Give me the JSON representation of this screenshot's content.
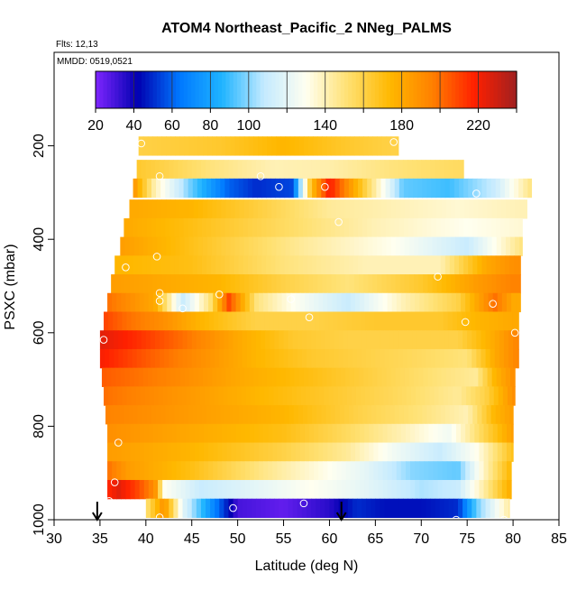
{
  "chart_data": {
    "type": "heatmap",
    "title": "ATOM4 Northeast_Pacific_2 NNeg_PALMS",
    "flights_note": "Flts: 12,13",
    "date_note": "MMDD: 0519,0521",
    "xlabel": "Latitude (deg N)",
    "ylabel": "PSXC (mbar)",
    "xlim": [
      30,
      85
    ],
    "ylim": [
      1000,
      0
    ],
    "x_ticks": [
      "30",
      "35",
      "40",
      "45",
      "50",
      "55",
      "60",
      "65",
      "70",
      "75",
      "80",
      "85"
    ],
    "y_ticks": [
      "200",
      "400",
      "600",
      "800",
      "1000"
    ],
    "colorbar": {
      "range": [
        20,
        240
      ],
      "tick_labels": [
        "20",
        "40",
        "60",
        "80",
        "100",
        "140",
        "180",
        "220"
      ],
      "colors": [
        "#7f26ff",
        "#0000b0",
        "#0078ff",
        "#1fb4ff",
        "#c4eaff",
        "#fffff0",
        "#ffe070",
        "#ffb800",
        "#ff8000",
        "#ff2000",
        "#a02020"
      ]
    },
    "arrows_latitude": [
      34.7,
      61.3
    ],
    "bands": [
      {
        "p": 200,
        "lat_min": 39.2,
        "lat_max": 67.5,
        "anchors": [
          [
            39,
            160
          ],
          [
            48,
            165
          ],
          [
            55,
            175
          ],
          [
            62,
            165
          ],
          [
            67,
            160
          ]
        ]
      },
      {
        "p": 250,
        "lat_min": 39.0,
        "lat_max": 74.6,
        "anchors": [
          [
            39,
            165
          ],
          [
            47,
            150
          ],
          [
            54,
            140
          ],
          [
            60,
            142
          ],
          [
            67,
            150
          ],
          [
            74,
            155
          ]
        ]
      },
      {
        "p": 290,
        "lat_min": 38.6,
        "lat_max": 82.0,
        "anchors": [
          [
            38.6,
            190
          ],
          [
            41,
            140
          ],
          [
            45,
            95
          ],
          [
            49,
            60
          ],
          [
            52,
            50
          ],
          [
            56,
            55
          ],
          [
            58,
            170
          ],
          [
            60,
            220
          ],
          [
            63,
            175
          ],
          [
            68,
            95
          ],
          [
            73,
            90
          ],
          [
            78,
            110
          ],
          [
            82,
            150
          ]
        ]
      },
      {
        "p": 335,
        "lat_min": 38.2,
        "lat_max": 81.5,
        "anchors": [
          [
            38,
            180
          ],
          [
            45,
            175
          ],
          [
            53,
            160
          ],
          [
            60,
            145
          ],
          [
            67,
            140
          ],
          [
            74,
            135
          ],
          [
            81,
            140
          ]
        ]
      },
      {
        "p": 375,
        "lat_min": 37.6,
        "lat_max": 81.0,
        "anchors": [
          [
            37.6,
            180
          ],
          [
            45,
            170
          ],
          [
            55,
            155
          ],
          [
            65,
            140
          ],
          [
            75,
            130
          ],
          [
            81,
            135
          ]
        ]
      },
      {
        "p": 415,
        "lat_min": 37.2,
        "lat_max": 81.0,
        "anchors": [
          [
            37,
            185
          ],
          [
            47,
            165
          ],
          [
            57,
            145
          ],
          [
            67,
            130
          ],
          [
            75,
            110
          ],
          [
            81,
            150
          ]
        ]
      },
      {
        "p": 455,
        "lat_min": 36.6,
        "lat_max": 80.8,
        "anchors": [
          [
            36.6,
            175
          ],
          [
            45,
            170
          ],
          [
            55,
            150
          ],
          [
            64,
            140
          ],
          [
            72,
            140
          ],
          [
            77,
            180
          ],
          [
            80,
            190
          ]
        ]
      },
      {
        "p": 495,
        "lat_min": 36.2,
        "lat_max": 80.8,
        "anchors": [
          [
            36,
            185
          ],
          [
            42,
            180
          ],
          [
            48,
            175
          ],
          [
            55,
            160
          ],
          [
            62,
            150
          ],
          [
            70,
            165
          ],
          [
            76,
            185
          ],
          [
            80,
            195
          ]
        ]
      },
      {
        "p": 535,
        "lat_min": 35.8,
        "lat_max": 80.8,
        "anchors": [
          [
            35.8,
            200
          ],
          [
            41,
            180
          ],
          [
            44,
            110
          ],
          [
            47,
            150
          ],
          [
            49,
            210
          ],
          [
            52,
            150
          ],
          [
            56,
            130
          ],
          [
            62,
            110
          ],
          [
            68,
            140
          ],
          [
            74,
            160
          ],
          [
            78,
            200
          ],
          [
            80,
            180
          ]
        ]
      },
      {
        "p": 575,
        "lat_min": 35.4,
        "lat_max": 80.6,
        "anchors": [
          [
            35.4,
            210
          ],
          [
            38,
            200
          ],
          [
            42,
            190
          ],
          [
            46,
            175
          ],
          [
            52,
            160
          ],
          [
            58,
            160
          ],
          [
            65,
            165
          ],
          [
            72,
            165
          ],
          [
            76,
            175
          ],
          [
            80,
            180
          ]
        ]
      },
      {
        "p": 615,
        "lat_min": 35.0,
        "lat_max": 80.6,
        "anchors": [
          [
            35,
            225
          ],
          [
            39,
            215
          ],
          [
            44,
            200
          ],
          [
            50,
            180
          ],
          [
            56,
            165
          ],
          [
            62,
            160
          ],
          [
            68,
            160
          ],
          [
            74,
            160
          ],
          [
            78,
            180
          ],
          [
            80.6,
            195
          ]
        ]
      },
      {
        "p": 655,
        "lat_min": 35.0,
        "lat_max": 80.6,
        "anchors": [
          [
            35,
            220
          ],
          [
            40,
            205
          ],
          [
            46,
            190
          ],
          [
            52,
            175
          ],
          [
            58,
            165
          ],
          [
            64,
            160
          ],
          [
            70,
            155
          ],
          [
            75,
            150
          ],
          [
            78,
            180
          ],
          [
            80.6,
            195
          ]
        ]
      },
      {
        "p": 695,
        "lat_min": 35.2,
        "lat_max": 80.2,
        "anchors": [
          [
            35,
            205
          ],
          [
            42,
            195
          ],
          [
            50,
            180
          ],
          [
            58,
            170
          ],
          [
            65,
            160
          ],
          [
            72,
            150
          ],
          [
            76,
            145
          ],
          [
            78,
            175
          ],
          [
            80,
            190
          ]
        ]
      },
      {
        "p": 735,
        "lat_min": 35.4,
        "lat_max": 80.2,
        "anchors": [
          [
            35.4,
            200
          ],
          [
            42,
            190
          ],
          [
            52,
            175
          ],
          [
            60,
            165
          ],
          [
            68,
            155
          ],
          [
            74,
            145
          ],
          [
            77,
            160
          ],
          [
            80,
            190
          ]
        ]
      },
      {
        "p": 775,
        "lat_min": 35.6,
        "lat_max": 80.0,
        "anchors": [
          [
            35.6,
            195
          ],
          [
            45,
            185
          ],
          [
            55,
            175
          ],
          [
            63,
            160
          ],
          [
            70,
            150
          ],
          [
            75,
            140
          ],
          [
            78,
            175
          ],
          [
            80,
            185
          ]
        ]
      },
      {
        "p": 815,
        "lat_min": 35.8,
        "lat_max": 80.0,
        "anchors": [
          [
            35.8,
            190
          ],
          [
            45,
            180
          ],
          [
            55,
            170
          ],
          [
            62,
            155
          ],
          [
            68,
            140
          ],
          [
            73,
            125
          ],
          [
            77,
            160
          ],
          [
            80,
            185
          ]
        ]
      },
      {
        "p": 855,
        "lat_min": 35.8,
        "lat_max": 80.0,
        "anchors": [
          [
            35.8,
            185
          ],
          [
            45,
            175
          ],
          [
            55,
            160
          ],
          [
            62,
            145
          ],
          [
            67,
            125
          ],
          [
            72,
            110
          ],
          [
            76,
            130
          ],
          [
            80,
            170
          ]
        ]
      },
      {
        "p": 895,
        "lat_min": 35.8,
        "lat_max": 79.8,
        "anchors": [
          [
            35.8,
            200
          ],
          [
            38,
            185
          ],
          [
            45,
            170
          ],
          [
            52,
            150
          ],
          [
            58,
            135
          ],
          [
            64,
            120
          ],
          [
            69,
            100
          ],
          [
            74,
            95
          ],
          [
            77,
            140
          ],
          [
            79.8,
            175
          ]
        ]
      },
      {
        "p": 935,
        "lat_min": 35.8,
        "lat_max": 79.8,
        "anchors": [
          [
            35.8,
            215
          ],
          [
            37,
            225
          ],
          [
            39,
            210
          ],
          [
            41,
            190
          ],
          [
            42,
            130
          ],
          [
            46,
            110
          ],
          [
            52,
            120
          ],
          [
            58,
            130
          ],
          [
            64,
            120
          ],
          [
            70,
            105
          ],
          [
            74,
            110
          ],
          [
            77,
            145
          ],
          [
            79.8,
            180
          ]
        ]
      },
      {
        "p": 975,
        "lat_min": 40.0,
        "lat_max": 79.6,
        "anchors": [
          [
            40,
            150
          ],
          [
            42,
            190
          ],
          [
            44,
            120
          ],
          [
            48,
            60
          ],
          [
            50,
            30
          ],
          [
            55,
            25
          ],
          [
            60,
            35
          ],
          [
            63,
            50
          ],
          [
            66,
            45
          ],
          [
            70,
            45
          ],
          [
            74,
            50
          ],
          [
            76,
            95
          ],
          [
            79.6,
            145
          ]
        ]
      }
    ],
    "points": [
      [
        39.5,
        195
      ],
      [
        41.5,
        265
      ],
      [
        67,
        192
      ],
      [
        52.5,
        265
      ],
      [
        54.5,
        288
      ],
      [
        59.5,
        288
      ],
      [
        76,
        302
      ],
      [
        37.8,
        460
      ],
      [
        41.2,
        437
      ],
      [
        61,
        363
      ],
      [
        71.8,
        480
      ],
      [
        41.5,
        515
      ],
      [
        41.5,
        532
      ],
      [
        44,
        548
      ],
      [
        48,
        518
      ],
      [
        55.8,
        528
      ],
      [
        57.8,
        567
      ],
      [
        74.8,
        577
      ],
      [
        77.8,
        538
      ],
      [
        80.2,
        600
      ],
      [
        35.4,
        615
      ],
      [
        37,
        835
      ],
      [
        36.6,
        920
      ],
      [
        36,
        960
      ],
      [
        41.5,
        995
      ],
      [
        49.5,
        975
      ],
      [
        57.2,
        965
      ],
      [
        73.8,
        1000
      ],
      [
        79,
        1000
      ]
    ]
  }
}
